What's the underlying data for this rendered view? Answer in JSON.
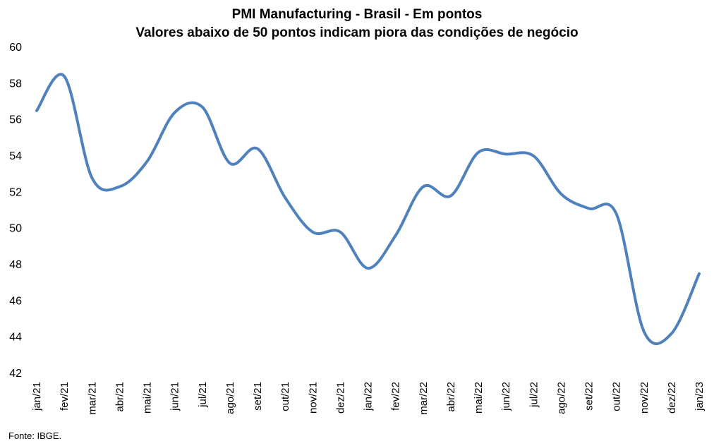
{
  "chart_data": {
    "type": "line",
    "title": "PMI Manufacturing - Brasil - Em pontos",
    "subtitle": "Valores abaixo de 50 pontos indicam piora das condições de negócio",
    "xlabel": "",
    "ylabel": "",
    "ylim": [
      42,
      60
    ],
    "yticks": [
      "42",
      "44",
      "46",
      "48",
      "50",
      "52",
      "54",
      "56",
      "58",
      "60"
    ],
    "grid": false,
    "categories": [
      "jan/21",
      "fev/21",
      "mar/21",
      "abr/21",
      "mai/21",
      "jun/21",
      "jul/21",
      "ago/21",
      "set/21",
      "out/21",
      "nov/21",
      "dez/21",
      "jan/22",
      "fev/22",
      "mar/22",
      "abr/22",
      "mai/22",
      "jun/22",
      "jul/22",
      "ago/22",
      "set/22",
      "out/22",
      "nov/22",
      "dez/22",
      "jan/23"
    ],
    "series": [
      {
        "color": "#4f81bd",
        "values": [
          56.5,
          58.4,
          52.8,
          52.3,
          53.7,
          56.4,
          56.7,
          53.6,
          54.4,
          51.7,
          49.8,
          49.8,
          47.8,
          49.6,
          52.3,
          51.8,
          54.2,
          54.1,
          54.0,
          51.9,
          51.1,
          50.8,
          44.3,
          44.2,
          47.5
        ]
      }
    ]
  },
  "source": "Fonte: IBGE."
}
